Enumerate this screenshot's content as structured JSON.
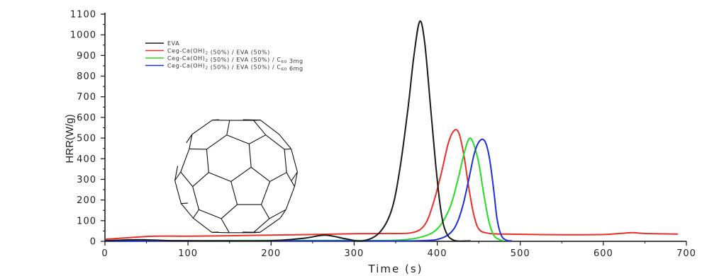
{
  "chart_data": {
    "type": "line",
    "xlabel": "Time (s)",
    "ylabel": "HRR(W/g)",
    "xlim": [
      0,
      700
    ],
    "ylim": [
      0,
      1100
    ],
    "x_ticks": [
      0,
      100,
      200,
      300,
      400,
      500,
      600,
      700
    ],
    "y_ticks": [
      0,
      100,
      200,
      300,
      400,
      500,
      600,
      700,
      800,
      900,
      1000,
      1100
    ],
    "grid": false,
    "legend_position": "top-left",
    "series": [
      {
        "name": "EVA",
        "color": "#1a1a1a",
        "points": [
          [
            0,
            3
          ],
          [
            40,
            8
          ],
          [
            80,
            3
          ],
          [
            150,
            2
          ],
          [
            200,
            3
          ],
          [
            240,
            15
          ],
          [
            265,
            30
          ],
          [
            290,
            12
          ],
          [
            310,
            2
          ],
          [
            330,
            40
          ],
          [
            345,
            150
          ],
          [
            355,
            350
          ],
          [
            365,
            650
          ],
          [
            372,
            900
          ],
          [
            379,
            1065
          ],
          [
            385,
            960
          ],
          [
            392,
            650
          ],
          [
            398,
            380
          ],
          [
            404,
            160
          ],
          [
            410,
            50
          ],
          [
            420,
            5
          ],
          [
            440,
            2
          ]
        ]
      },
      {
        "name": "Ceg-Ca(OH)2 (50%) / EVA (50%)",
        "color": "#e8302a",
        "points": [
          [
            0,
            10
          ],
          [
            30,
            18
          ],
          [
            60,
            25
          ],
          [
            100,
            25
          ],
          [
            150,
            27
          ],
          [
            200,
            30
          ],
          [
            250,
            33
          ],
          [
            300,
            37
          ],
          [
            340,
            38
          ],
          [
            370,
            42
          ],
          [
            385,
            80
          ],
          [
            395,
            180
          ],
          [
            405,
            330
          ],
          [
            413,
            470
          ],
          [
            420,
            535
          ],
          [
            426,
            525
          ],
          [
            432,
            420
          ],
          [
            438,
            260
          ],
          [
            444,
            130
          ],
          [
            450,
            60
          ],
          [
            460,
            40
          ],
          [
            480,
            35
          ],
          [
            550,
            32
          ],
          [
            600,
            33
          ],
          [
            620,
            38
          ],
          [
            635,
            42
          ],
          [
            650,
            38
          ],
          [
            690,
            35
          ]
        ]
      },
      {
        "name": "Ceg-Ca(OH)2 (50%) / EVA (50%) / C60 3mg",
        "color": "#22dd22",
        "points": [
          [
            0,
            2
          ],
          [
            100,
            3
          ],
          [
            200,
            4
          ],
          [
            300,
            4
          ],
          [
            350,
            5
          ],
          [
            380,
            20
          ],
          [
            400,
            60
          ],
          [
            415,
            160
          ],
          [
            425,
            300
          ],
          [
            432,
            420
          ],
          [
            438,
            495
          ],
          [
            443,
            480
          ],
          [
            450,
            380
          ],
          [
            456,
            230
          ],
          [
            462,
            100
          ],
          [
            468,
            30
          ],
          [
            475,
            8
          ],
          [
            480,
            3
          ]
        ]
      },
      {
        "name": "Ceg-Ca(OH)2 (50%) / EVA (50%) / C60 6mg",
        "color": "#1f2fd8",
        "points": [
          [
            0,
            1
          ],
          [
            100,
            2
          ],
          [
            200,
            2
          ],
          [
            300,
            2
          ],
          [
            380,
            3
          ],
          [
            405,
            15
          ],
          [
            420,
            60
          ],
          [
            430,
            160
          ],
          [
            438,
            300
          ],
          [
            445,
            430
          ],
          [
            452,
            490
          ],
          [
            458,
            480
          ],
          [
            463,
            400
          ],
          [
            468,
            250
          ],
          [
            472,
            110
          ],
          [
            477,
            30
          ],
          [
            483,
            6
          ],
          [
            490,
            2
          ]
        ]
      }
    ],
    "legend_labels": [
      {
        "text": "EVA",
        "sub": "",
        "suffix": ""
      },
      {
        "text": "Ceg-Ca(OH)",
        "sub": "2",
        "suffix": " (50%) / EVA (50%)"
      },
      {
        "text": "Ceg-Ca(OH)",
        "sub": "2",
        "suffix": " (50%) / EVA (50%) / C",
        "sub2": "60",
        "suffix2": " 3mg"
      },
      {
        "text": "Ceg-Ca(OH)",
        "sub": "2",
        "suffix": " (50%) / EVA (50%) / C",
        "sub2": "60",
        "suffix2": " 6mg"
      }
    ]
  },
  "inset": {
    "icon": "fullerene-c60-icon"
  }
}
